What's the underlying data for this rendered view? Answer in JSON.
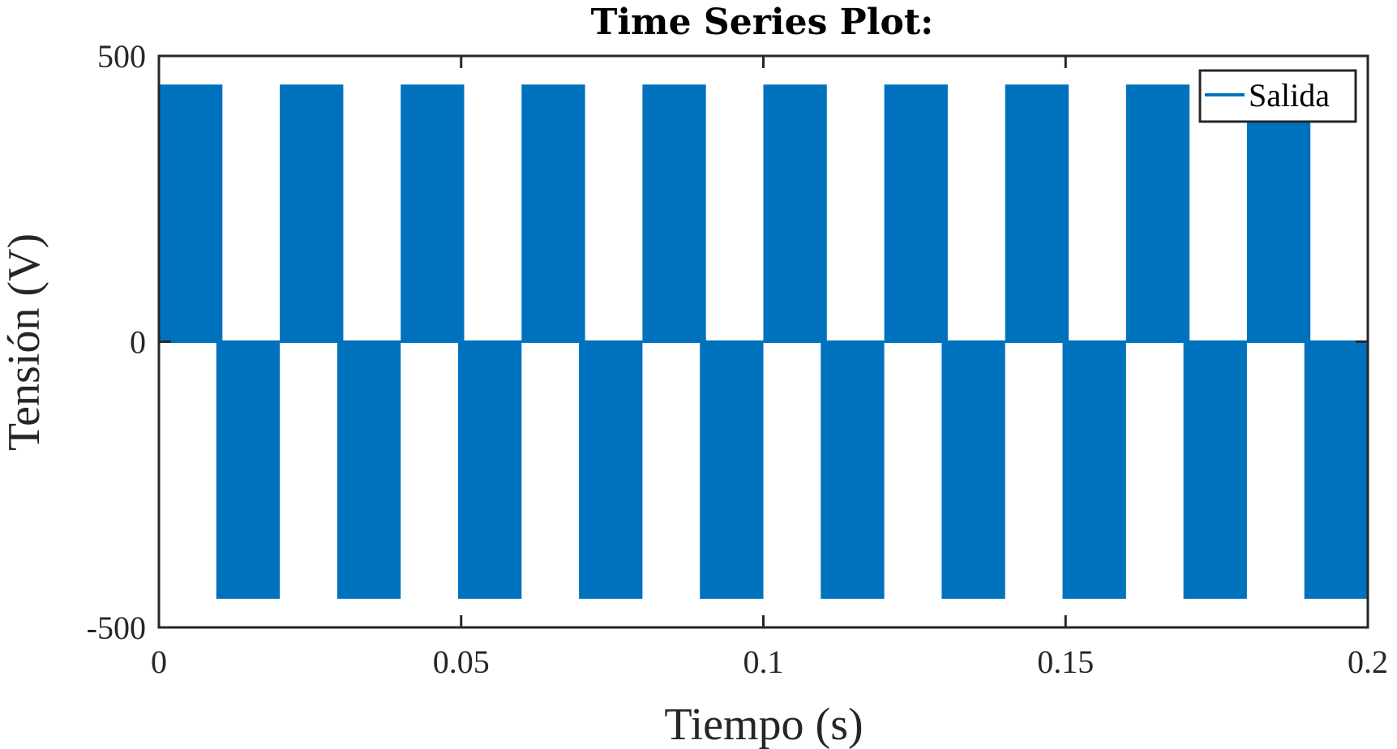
{
  "chart_data": {
    "type": "area",
    "title": "Time Series Plot:",
    "xlabel": "Tiempo (s)",
    "ylabel": "Tensión (V)",
    "xlim": [
      0,
      0.2
    ],
    "ylim": [
      -500,
      500
    ],
    "xticks": [
      0,
      0.05,
      0.1,
      0.15,
      0.2
    ],
    "xtick_labels": [
      "0",
      "0.05",
      "0.1",
      "0.15",
      "0.2"
    ],
    "yticks": [
      500,
      0,
      -500
    ],
    "ytick_labels": [
      "500",
      "0",
      "-500"
    ],
    "grid": false,
    "legend": {
      "position": "top-right",
      "entries": [
        "Salida"
      ]
    },
    "series": [
      {
        "name": "Salida",
        "color": "#0072BD",
        "description_values": {
          "period_s": 0.02,
          "high_level_V": 450,
          "low_level_V": -450,
          "baseline_V": 0
        },
        "segments": [
          {
            "x_start": 0.0,
            "x_end": 0.0105,
            "y_min": 0,
            "y_max": 450
          },
          {
            "x_start": 0.0095,
            "x_end": 0.02,
            "y_min": -450,
            "y_max": 0
          },
          {
            "x_start": 0.02,
            "x_end": 0.0305,
            "y_min": 0,
            "y_max": 450
          },
          {
            "x_start": 0.0295,
            "x_end": 0.04,
            "y_min": -450,
            "y_max": 0
          },
          {
            "x_start": 0.04,
            "x_end": 0.0505,
            "y_min": 0,
            "y_max": 450
          },
          {
            "x_start": 0.0495,
            "x_end": 0.06,
            "y_min": -450,
            "y_max": 0
          },
          {
            "x_start": 0.06,
            "x_end": 0.0705,
            "y_min": 0,
            "y_max": 450
          },
          {
            "x_start": 0.0695,
            "x_end": 0.08,
            "y_min": -450,
            "y_max": 0
          },
          {
            "x_start": 0.08,
            "x_end": 0.0905,
            "y_min": 0,
            "y_max": 450
          },
          {
            "x_start": 0.0895,
            "x_end": 0.1,
            "y_min": -450,
            "y_max": 0
          },
          {
            "x_start": 0.1,
            "x_end": 0.1105,
            "y_min": 0,
            "y_max": 450
          },
          {
            "x_start": 0.1095,
            "x_end": 0.12,
            "y_min": -450,
            "y_max": 0
          },
          {
            "x_start": 0.12,
            "x_end": 0.1305,
            "y_min": 0,
            "y_max": 450
          },
          {
            "x_start": 0.1295,
            "x_end": 0.14,
            "y_min": -450,
            "y_max": 0
          },
          {
            "x_start": 0.14,
            "x_end": 0.1505,
            "y_min": 0,
            "y_max": 450
          },
          {
            "x_start": 0.1495,
            "x_end": 0.16,
            "y_min": -450,
            "y_max": 0
          },
          {
            "x_start": 0.16,
            "x_end": 0.1705,
            "y_min": 0,
            "y_max": 450
          },
          {
            "x_start": 0.1695,
            "x_end": 0.18,
            "y_min": -450,
            "y_max": 0
          },
          {
            "x_start": 0.18,
            "x_end": 0.1905,
            "y_min": 0,
            "y_max": 450
          },
          {
            "x_start": 0.1895,
            "x_end": 0.2,
            "y_min": -450,
            "y_max": 0
          }
        ]
      }
    ]
  }
}
